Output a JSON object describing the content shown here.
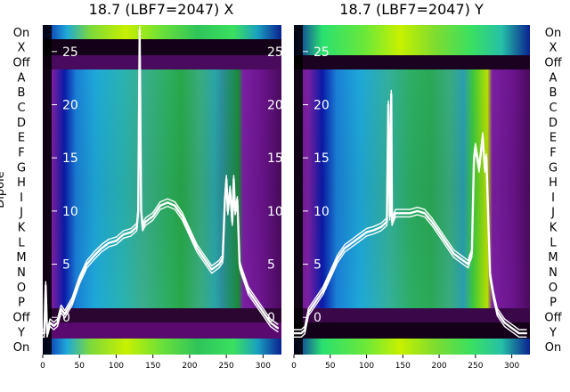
{
  "chart_data": [
    {
      "type": "heatmap",
      "title": "18.7 (LBF7=2047) X",
      "ylabel": "Dipole",
      "xlim": [
        0,
        325
      ],
      "x_ticks": [
        0,
        50,
        100,
        150,
        200,
        250,
        300
      ],
      "row_labels": [
        "On",
        "X",
        "Off",
        "A",
        "B",
        "C",
        "D",
        "E",
        "F",
        "G",
        "H",
        "I",
        "J",
        "K",
        "L",
        "M",
        "N",
        "O",
        "P",
        "Off",
        "Y",
        "On"
      ],
      "overlay_ylim": [
        -3.5,
        27.5
      ],
      "overlay_ticks": [
        0,
        5,
        10,
        15,
        20,
        25
      ],
      "overlay_series": {
        "x": [
          0,
          2,
          4,
          6,
          10,
          15,
          20,
          25,
          30,
          40,
          50,
          60,
          70,
          80,
          90,
          100,
          110,
          120,
          128,
          130,
          132,
          134,
          136,
          140,
          150,
          160,
          170,
          180,
          190,
          200,
          210,
          220,
          230,
          240,
          245,
          248,
          250,
          252,
          255,
          258,
          260,
          262,
          265,
          268,
          270,
          275,
          280,
          290,
          300,
          310,
          320
        ],
        "y": [
          -1.5,
          -1.5,
          3,
          -1.5,
          -0.5,
          -0.8,
          -0.5,
          0.8,
          0.3,
          1.5,
          3.5,
          5,
          5.8,
          6.5,
          7,
          7.2,
          7.8,
          8,
          8.5,
          10,
          27,
          10,
          8.5,
          9,
          9.5,
          10.5,
          10.8,
          10.5,
          9.5,
          8,
          6.5,
          5.5,
          4.5,
          5,
          5.5,
          11,
          13,
          10,
          12,
          9,
          13,
          10,
          11,
          5,
          4.5,
          3.5,
          2.5,
          1.5,
          0.5,
          -0.5,
          -1
        ]
      }
    },
    {
      "type": "heatmap",
      "title": "18.7 (LBF7=2047) Y",
      "xlim": [
        0,
        325
      ],
      "x_ticks": [
        0,
        50,
        100,
        150,
        200,
        250,
        300
      ],
      "row_labels": [
        "On",
        "X",
        "Off",
        "A",
        "B",
        "C",
        "D",
        "E",
        "F",
        "G",
        "H",
        "I",
        "J",
        "K",
        "L",
        "M",
        "N",
        "O",
        "P",
        "Off",
        "Y",
        "On"
      ],
      "overlay_ylim": [
        -3.5,
        27.5
      ],
      "overlay_ticks": [
        0,
        5,
        10,
        15,
        20,
        25
      ],
      "overlay_series": {
        "x": [
          0,
          5,
          10,
          15,
          20,
          25,
          30,
          40,
          50,
          60,
          70,
          80,
          90,
          100,
          110,
          120,
          128,
          130,
          132,
          134,
          135,
          138,
          140,
          150,
          160,
          170,
          180,
          190,
          200,
          210,
          220,
          230,
          240,
          242,
          245,
          248,
          250,
          255,
          260,
          263,
          265,
          270,
          275,
          280,
          290,
          300,
          310,
          320
        ],
        "y": [
          -1.5,
          -1.5,
          -1.5,
          -1.2,
          0.5,
          1,
          1.5,
          2.5,
          4,
          5.5,
          6.5,
          7,
          7.5,
          8,
          8.2,
          8.5,
          9,
          20,
          9.5,
          21,
          9,
          9.5,
          9.8,
          9.8,
          9.8,
          10,
          9.8,
          9,
          8,
          7,
          6,
          5.5,
          5,
          5.5,
          6,
          15,
          16,
          14,
          17,
          14,
          15,
          4,
          2,
          0.5,
          -0.5,
          -1,
          -1.5,
          -1.5
        ]
      }
    }
  ]
}
